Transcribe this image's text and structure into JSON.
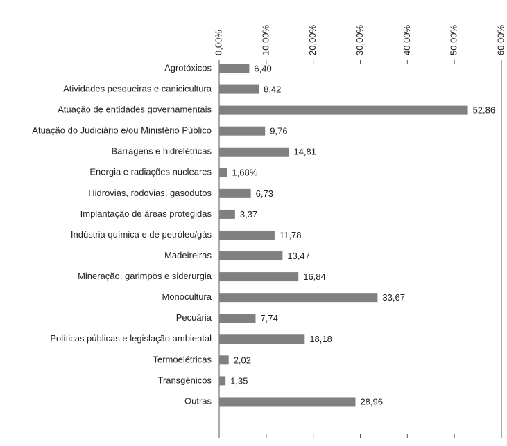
{
  "chart_data": {
    "type": "bar",
    "orientation": "horizontal",
    "categories": [
      "Agrotóxicos",
      "Atividades pesqueiras e canicicultura",
      "Atuação de entidades governamentais",
      "Atuação do Judiciário e/ou Ministério Público",
      "Barragens e hidrelétricas",
      "Energia e radiações nucleares",
      "Hidrovias, rodovias, gasodutos",
      "Implantação de áreas protegidas",
      "Indústria química e de petróleo/gás",
      "Madeireiras",
      "Mineração, garimpos e siderurgia",
      "Monocultura",
      "Pecuária",
      "Políticas públicas e legislação ambiental",
      "Termoelétricas",
      "Transgênicos",
      "Outras"
    ],
    "values": [
      6.4,
      8.42,
      52.86,
      9.76,
      14.81,
      1.68,
      6.73,
      3.37,
      11.78,
      13.47,
      16.84,
      33.67,
      7.74,
      18.18,
      2.02,
      1.35,
      28.96
    ],
    "value_labels": [
      "6,40",
      "8,42",
      "52,86",
      "9,76",
      "14,81",
      "1,68%",
      "6,73",
      "3,37",
      "11,78",
      "13,47",
      "16,84",
      "33,67",
      "7,74",
      "18,18",
      "2,02",
      "1,35",
      "28,96"
    ],
    "color": "#808080",
    "xlim": [
      0,
      60
    ],
    "xticks": [
      {
        "value": 0,
        "label": "0,00%"
      },
      {
        "value": 10,
        "label": "10,00%"
      },
      {
        "value": 20,
        "label": "20,00%"
      },
      {
        "value": 30,
        "label": "30,00%"
      },
      {
        "value": 40,
        "label": "40,00%"
      },
      {
        "value": 50,
        "label": "50,00%"
      },
      {
        "value": 60,
        "label": "60,00%"
      }
    ],
    "grid": false
  }
}
